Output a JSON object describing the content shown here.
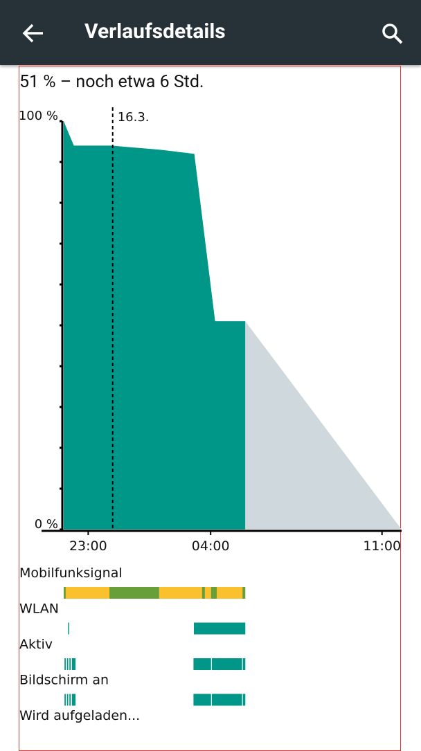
{
  "header": {
    "title": "Verlaufsdetails"
  },
  "summary": "51 % – noch etwa 6 Std.",
  "chart_data": {
    "type": "area",
    "xlim": [
      "22:00",
      "11:48"
    ],
    "xticks": [
      "23:00",
      "04:00",
      "11:00"
    ],
    "ylim": [
      0,
      100
    ],
    "yticks": [
      {
        "value": 0,
        "label": "0 %"
      },
      {
        "value": 100,
        "label": "100 %"
      }
    ],
    "yminor": [
      10,
      20,
      30,
      40,
      50,
      60,
      70,
      80,
      90
    ],
    "date_marker": {
      "x": "00:00",
      "label": "16.3."
    },
    "series": [
      {
        "color": "#009688",
        "x": [
          "22:00",
          "22:08",
          "22:25",
          "23:56",
          "01:55",
          "03:20",
          "04:11",
          "05:25"
        ],
        "values": [
          100,
          98,
          94,
          94,
          93,
          92,
          51,
          51
        ]
      },
      {
        "color": "#cfd8dc",
        "x": [
          "05:25",
          "11:48"
        ],
        "values": [
          51,
          0
        ]
      }
    ],
    "tracks": [
      {
        "name": "Mobilfunksignal",
        "segments": [
          {
            "x": [
              "22:00",
              "22:05"
            ],
            "color": "#689f38"
          },
          {
            "x": [
              "22:05",
              "23:52"
            ],
            "color": "#fbc02d"
          },
          {
            "x": [
              "23:52",
              "01:54"
            ],
            "color": "#689f38"
          },
          {
            "x": [
              "01:54",
              "03:39"
            ],
            "color": "#fbc02d"
          },
          {
            "x": [
              "03:39",
              "03:46"
            ],
            "color": "#689f38"
          },
          {
            "x": [
              "03:46",
              "04:01"
            ],
            "color": "#fbc02d"
          },
          {
            "x": [
              "04:01",
              "04:15"
            ],
            "color": "#689f38"
          },
          {
            "x": [
              "04:15",
              "05:18"
            ],
            "color": "#fbc02d"
          },
          {
            "x": [
              "05:18",
              "05:25"
            ],
            "color": "#689f38"
          }
        ]
      },
      {
        "name": "WLAN",
        "segments": [
          {
            "x": [
              "22:11",
              "22:13"
            ],
            "color": "#009688"
          },
          {
            "x": [
              "03:19",
              "05:25"
            ],
            "color": "#009688"
          }
        ]
      },
      {
        "name": "Aktiv",
        "segments": [
          {
            "x": [
              "22:02",
              "22:05"
            ],
            "color": "#009688"
          },
          {
            "x": [
              "22:08",
              "22:11"
            ],
            "color": "#009688"
          },
          {
            "x": [
              "22:14",
              "22:17"
            ],
            "color": "#009688"
          },
          {
            "x": [
              "22:20",
              "22:29"
            ],
            "color": "#009688"
          },
          {
            "x": [
              "03:18",
              "04:01"
            ],
            "color": "#009688"
          },
          {
            "x": [
              "04:03",
              "05:17"
            ],
            "color": "#009688"
          },
          {
            "x": [
              "05:19",
              "05:25"
            ],
            "color": "#009688"
          }
        ]
      },
      {
        "name": "Bildschirm an",
        "segments": [
          {
            "x": [
              "22:02",
              "22:05"
            ],
            "color": "#009688"
          },
          {
            "x": [
              "22:08",
              "22:11"
            ],
            "color": "#009688"
          },
          {
            "x": [
              "22:14",
              "22:17"
            ],
            "color": "#009688"
          },
          {
            "x": [
              "22:20",
              "22:29"
            ],
            "color": "#009688"
          },
          {
            "x": [
              "03:18",
              "04:01"
            ],
            "color": "#009688"
          },
          {
            "x": [
              "04:03",
              "05:17"
            ],
            "color": "#009688"
          },
          {
            "x": [
              "05:19",
              "05:25"
            ],
            "color": "#009688"
          }
        ]
      },
      {
        "name": "Wird aufgeladen...",
        "segments": []
      }
    ]
  }
}
